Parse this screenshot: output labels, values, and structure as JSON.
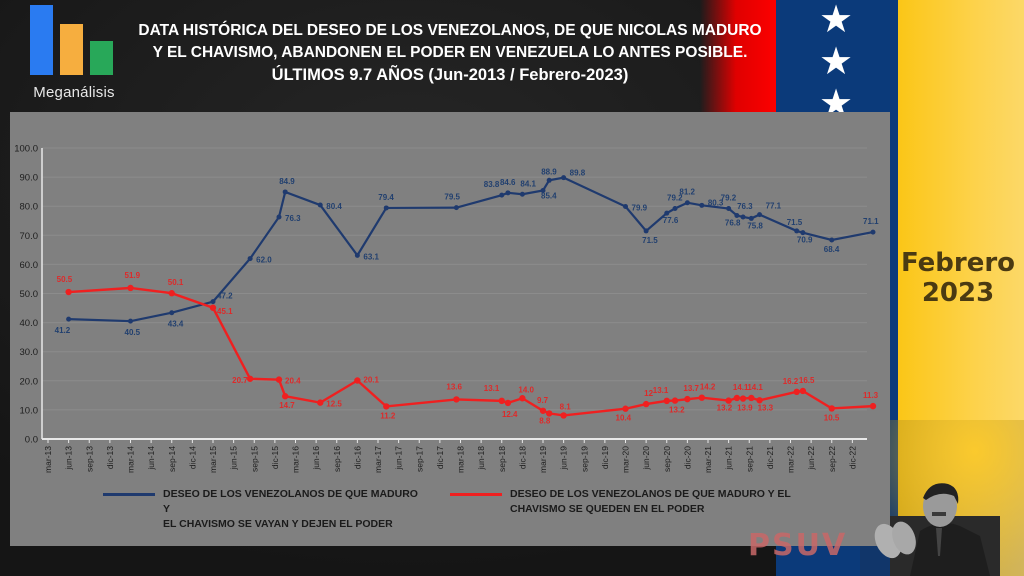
{
  "header": {
    "logo_text": "Meganálisis",
    "title_line1": "DATA HISTÓRICA DEL DESEO DE LOS VENEZOLANOS, DE QUE NICOLAS MADURO",
    "title_line2": "Y EL CHAVISMO, ABANDONEN EL PODER EN VENEZUELA LO ANTES POSIBLE.",
    "title_line3": "ÚLTIMOS 9.7 AÑOS (Jun-2013 / Febrero-2023)"
  },
  "side": {
    "month_line1": "Febrero",
    "month_line2": "2023",
    "watermark": "PSUV",
    "stars": [
      "star",
      "star",
      "star"
    ]
  },
  "colors": {
    "blue_series": "#1f3a6e",
    "red_series": "#ef2020",
    "panel": "#808080",
    "flag_yellow": "#fbc617",
    "flag_blue": "#0b3a7a",
    "flag_red": "#ff0000"
  },
  "chart_data": {
    "type": "line",
    "title": "DATA HISTÓRICA DEL DESEO DE LOS VENEZOLANOS, DE QUE NICOLAS MADURO Y EL CHAVISMO, ABANDONEN EL PODER EN VENEZUELA LO ANTES POSIBLE. ÚLTIMOS 9.7 AÑOS (Jun-2013 / Febrero-2023)",
    "xlabel": "",
    "ylabel": "",
    "ylim": [
      0,
      100
    ],
    "yticks": [
      "0.0",
      "10.0",
      "20.0",
      "30.0",
      "40.0",
      "50.0",
      "60.0",
      "70.0",
      "80.0",
      "90.0",
      "100.0"
    ],
    "grid": true,
    "legend_position": "bottom",
    "categories": [
      "mar-13",
      "jun-13",
      "sep-13",
      "dic-13",
      "mar-14",
      "jun-14",
      "sep-14",
      "dic-14",
      "mar-15",
      "jun-15",
      "sep-15",
      "dic-15",
      "mar-16",
      "jun-16",
      "sep-16",
      "dic-16",
      "mar-17",
      "jun-17",
      "sep-17",
      "dic-17",
      "mar-18",
      "jun-18",
      "sep-18",
      "dic-18",
      "mar-19",
      "jun-19",
      "sep-19",
      "dic-19",
      "mar-20",
      "jun-20",
      "sep-20",
      "dic-20",
      "mar-21",
      "jun-21",
      "sep-21",
      "dic-21",
      "mar-22",
      "jun-22",
      "sep-22",
      "dic-22"
    ],
    "series": [
      {
        "name": "DESEO DE LOS VENEZOLANOS DE QUE MADURO Y EL CHAVISMO SE VAYAN Y DEJEN EL PODER",
        "legend_line1": "DESEO DE LOS VENEZOLANOS DE QUE MADURO Y",
        "legend_line2": "EL CHAVISMO  SE VAYAN Y DEJEN EL PODER",
        "color": "#1f3a6e",
        "points": [
          {
            "x": 1.0,
            "y": 41.2,
            "label": "41.2"
          },
          {
            "x": 4.0,
            "y": 40.5,
            "label": "40.5"
          },
          {
            "x": 6.0,
            "y": 43.4,
            "label": "43.4"
          },
          {
            "x": 8.0,
            "y": 47.2,
            "label": "47.2"
          },
          {
            "x": 9.8,
            "y": 62.0,
            "label": "62.0"
          },
          {
            "x": 11.2,
            "y": 76.3,
            "label": "76.3"
          },
          {
            "x": 11.5,
            "y": 84.9,
            "label": "84.9"
          },
          {
            "x": 13.2,
            "y": 80.4,
            "label": "80.4"
          },
          {
            "x": 15.0,
            "y": 63.1,
            "label": "63.1"
          },
          {
            "x": 16.4,
            "y": 79.4,
            "label": "79.4"
          },
          {
            "x": 19.8,
            "y": 79.5,
            "label": "79.5"
          },
          {
            "x": 22.0,
            "y": 83.8,
            "label": "83.8"
          },
          {
            "x": 22.3,
            "y": 84.6,
            "label": "84.6"
          },
          {
            "x": 23.0,
            "y": 84.1,
            "label": "84.1"
          },
          {
            "x": 24.0,
            "y": 85.4,
            "label": "85.4"
          },
          {
            "x": 24.3,
            "y": 88.9,
            "label": "88.9"
          },
          {
            "x": 25.0,
            "y": 89.8,
            "label": "89.8"
          },
          {
            "x": 28.0,
            "y": 79.9,
            "label": "79.9"
          },
          {
            "x": 29.0,
            "y": 71.5,
            "label": "71.5"
          },
          {
            "x": 30.0,
            "y": 77.6,
            "label": "77.6"
          },
          {
            "x": 30.4,
            "y": 79.2,
            "label": "79.2"
          },
          {
            "x": 31.0,
            "y": 81.2,
            "label": "81.2"
          },
          {
            "x": 31.7,
            "y": 80.3,
            "label": "80.3"
          },
          {
            "x": 33.0,
            "y": 79.2,
            "label": "79.2"
          },
          {
            "x": 33.4,
            "y": 76.8,
            "label": "76.8"
          },
          {
            "x": 33.7,
            "y": 76.3,
            "label": "76.3"
          },
          {
            "x": 34.1,
            "y": 75.8,
            "label": "75.8"
          },
          {
            "x": 34.5,
            "y": 77.1,
            "label": "77.1"
          },
          {
            "x": 36.3,
            "y": 71.5,
            "label": "71.5"
          },
          {
            "x": 36.6,
            "y": 70.9,
            "label": "70.9"
          },
          {
            "x": 38.0,
            "y": 68.4,
            "label": "68.4"
          },
          {
            "x": 40.0,
            "y": 71.1,
            "label": "71.1"
          }
        ]
      },
      {
        "name": "DESEO DE LOS VENEZOLANOS DE QUE MADURO Y EL CHAVISMO SE QUEDEN EN EL PODER",
        "legend_line1": "DESEO DE LOS VENEZOLANOS DE QUE MADURO Y EL",
        "legend_line2": "CHAVISMO SE QUEDEN EN EL PODER",
        "color": "#ef2020",
        "points": [
          {
            "x": 1.0,
            "y": 50.5,
            "label": "50.5"
          },
          {
            "x": 4.0,
            "y": 51.9,
            "label": "51.9"
          },
          {
            "x": 6.0,
            "y": 50.1,
            "label": "50.1"
          },
          {
            "x": 8.0,
            "y": 45.1,
            "label": "45.1"
          },
          {
            "x": 9.8,
            "y": 20.7,
            "label": "20.7"
          },
          {
            "x": 11.2,
            "y": 20.4,
            "label": "20.4"
          },
          {
            "x": 11.5,
            "y": 14.7,
            "label": "14.7"
          },
          {
            "x": 13.2,
            "y": 12.5,
            "label": "12.5"
          },
          {
            "x": 15.0,
            "y": 20.1,
            "label": "20.1"
          },
          {
            "x": 16.4,
            "y": 11.2,
            "label": "11.2"
          },
          {
            "x": 19.8,
            "y": 13.6,
            "label": "13.6"
          },
          {
            "x": 22.0,
            "y": 13.1,
            "label": "13.1"
          },
          {
            "x": 22.3,
            "y": 12.4,
            "label": "12.4"
          },
          {
            "x": 23.0,
            "y": 14.0,
            "label": "14.0"
          },
          {
            "x": 24.0,
            "y": 9.7,
            "label": "9.7"
          },
          {
            "x": 24.3,
            "y": 8.8,
            "label": "8.8"
          },
          {
            "x": 25.0,
            "y": 8.1,
            "label": "8.1"
          },
          {
            "x": 28.0,
            "y": 10.4,
            "label": "10.4"
          },
          {
            "x": 29.0,
            "y": 12.0,
            "label": "12"
          },
          {
            "x": 30.0,
            "y": 13.1,
            "label": "13.1"
          },
          {
            "x": 30.4,
            "y": 13.2,
            "label": "13.2"
          },
          {
            "x": 31.0,
            "y": 13.7,
            "label": "13.7"
          },
          {
            "x": 31.7,
            "y": 14.2,
            "label": "14.2"
          },
          {
            "x": 33.0,
            "y": 13.2,
            "label": "13.2"
          },
          {
            "x": 33.4,
            "y": 14.1,
            "label": "14.1"
          },
          {
            "x": 33.7,
            "y": 13.9,
            "label": "13.9"
          },
          {
            "x": 34.1,
            "y": 14.1,
            "label": "14.1"
          },
          {
            "x": 34.5,
            "y": 13.3,
            "label": "13.3"
          },
          {
            "x": 36.3,
            "y": 16.2,
            "label": "16.2"
          },
          {
            "x": 36.6,
            "y": 16.5,
            "label": "16.5"
          },
          {
            "x": 38.0,
            "y": 10.5,
            "label": "10.5"
          },
          {
            "x": 40.0,
            "y": 11.3,
            "label": "11.3"
          }
        ]
      }
    ]
  }
}
